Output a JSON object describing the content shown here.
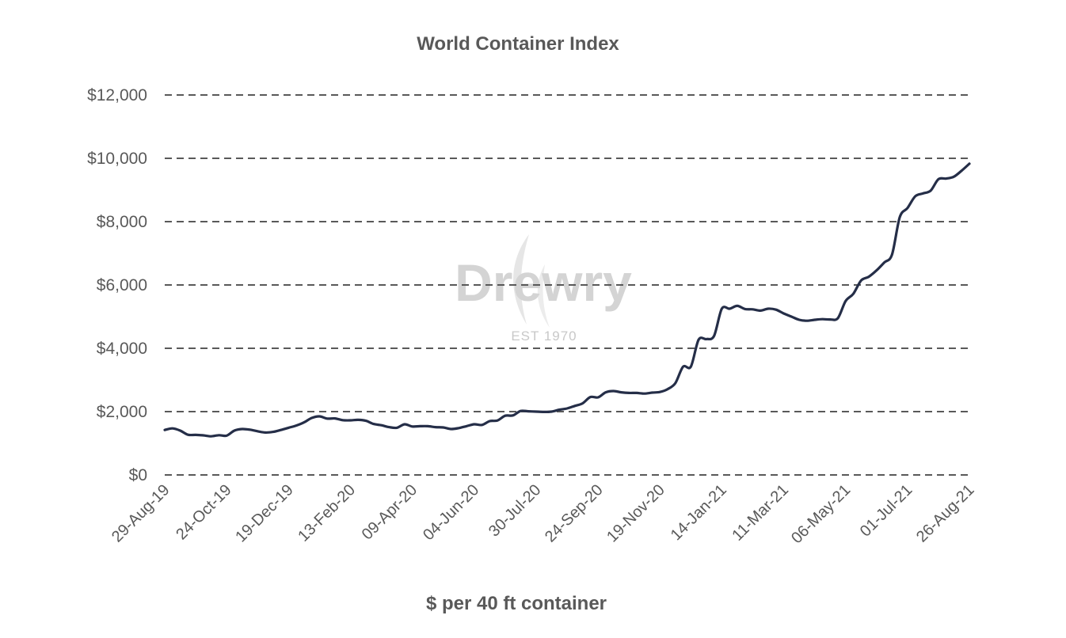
{
  "chart_data": {
    "type": "line",
    "title": "World Container Index",
    "xlabel": "$ per 40 ft container",
    "ylabel": "",
    "ylim": [
      0,
      12000
    ],
    "yticks": [
      0,
      2000,
      4000,
      6000,
      8000,
      10000,
      12000
    ],
    "ytick_labels": [
      "$0",
      "$2,000",
      "$4,000",
      "$6,000",
      "$8,000",
      "$10,000",
      "$12,000"
    ],
    "xlim": [
      "2019-08-29",
      "2021-08-26"
    ],
    "xticks": [
      "2019-08-29",
      "2019-10-24",
      "2019-12-19",
      "2020-02-13",
      "2020-04-09",
      "2020-06-04",
      "2020-07-30",
      "2020-09-24",
      "2020-11-19",
      "2021-01-14",
      "2021-03-11",
      "2021-05-06",
      "2021-07-01",
      "2021-08-26"
    ],
    "xtick_labels": [
      "29-Aug-19",
      "24-Oct-19",
      "19-Dec-19",
      "13-Feb-20",
      "09-Apr-20",
      "04-Jun-20",
      "30-Jul-20",
      "24-Sep-20",
      "19-Nov-20",
      "14-Jan-21",
      "11-Mar-21",
      "06-May-21",
      "01-Jul-21",
      "26-Aug-21"
    ],
    "grid": true,
    "legend": "none",
    "watermark": {
      "name": "Drewry",
      "established": "EST 1970"
    },
    "series": [
      {
        "color": "#252e48",
        "points": [
          [
            "2019-08-29",
            1420
          ],
          [
            "2019-09-05",
            1470
          ],
          [
            "2019-09-12",
            1400
          ],
          [
            "2019-09-19",
            1270
          ],
          [
            "2019-09-26",
            1265
          ],
          [
            "2019-10-03",
            1250
          ],
          [
            "2019-10-10",
            1220
          ],
          [
            "2019-10-17",
            1255
          ],
          [
            "2019-10-24",
            1240
          ],
          [
            "2019-10-31",
            1400
          ],
          [
            "2019-11-07",
            1450
          ],
          [
            "2019-11-14",
            1430
          ],
          [
            "2019-11-21",
            1380
          ],
          [
            "2019-11-28",
            1340
          ],
          [
            "2019-12-05",
            1360
          ],
          [
            "2019-12-12",
            1420
          ],
          [
            "2019-12-19",
            1490
          ],
          [
            "2019-12-26",
            1560
          ],
          [
            "2020-01-02",
            1660
          ],
          [
            "2020-01-09",
            1800
          ],
          [
            "2020-01-16",
            1850
          ],
          [
            "2020-01-23",
            1780
          ],
          [
            "2020-01-30",
            1785
          ],
          [
            "2020-02-06",
            1730
          ],
          [
            "2020-02-13",
            1725
          ],
          [
            "2020-02-20",
            1740
          ],
          [
            "2020-02-27",
            1710
          ],
          [
            "2020-03-05",
            1610
          ],
          [
            "2020-03-12",
            1570
          ],
          [
            "2020-03-19",
            1510
          ],
          [
            "2020-03-26",
            1490
          ],
          [
            "2020-04-02",
            1600
          ],
          [
            "2020-04-09",
            1530
          ],
          [
            "2020-04-16",
            1540
          ],
          [
            "2020-04-23",
            1540
          ],
          [
            "2020-04-30",
            1510
          ],
          [
            "2020-05-07",
            1500
          ],
          [
            "2020-05-14",
            1450
          ],
          [
            "2020-05-21",
            1480
          ],
          [
            "2020-05-28",
            1540
          ],
          [
            "2020-06-04",
            1600
          ],
          [
            "2020-06-11",
            1580
          ],
          [
            "2020-06-18",
            1700
          ],
          [
            "2020-06-25",
            1720
          ],
          [
            "2020-07-02",
            1870
          ],
          [
            "2020-07-09",
            1880
          ],
          [
            "2020-07-16",
            2020
          ],
          [
            "2020-07-23",
            2010
          ],
          [
            "2020-07-30",
            2000
          ],
          [
            "2020-08-06",
            1990
          ],
          [
            "2020-08-13",
            2000
          ],
          [
            "2020-08-20",
            2060
          ],
          [
            "2020-08-27",
            2100
          ],
          [
            "2020-09-03",
            2180
          ],
          [
            "2020-09-10",
            2260
          ],
          [
            "2020-09-17",
            2460
          ],
          [
            "2020-09-24",
            2450
          ],
          [
            "2020-10-01",
            2610
          ],
          [
            "2020-10-08",
            2650
          ],
          [
            "2020-10-15",
            2610
          ],
          [
            "2020-10-22",
            2590
          ],
          [
            "2020-10-29",
            2590
          ],
          [
            "2020-11-05",
            2570
          ],
          [
            "2020-11-12",
            2600
          ],
          [
            "2020-11-19",
            2620
          ],
          [
            "2020-11-26",
            2710
          ],
          [
            "2020-12-03",
            2900
          ],
          [
            "2020-12-10",
            3420
          ],
          [
            "2020-12-17",
            3420
          ],
          [
            "2020-12-24",
            4270
          ],
          [
            "2020-12-31",
            4290
          ],
          [
            "2021-01-07",
            4390
          ],
          [
            "2021-01-14",
            5250
          ],
          [
            "2021-01-21",
            5250
          ],
          [
            "2021-01-28",
            5340
          ],
          [
            "2021-02-04",
            5240
          ],
          [
            "2021-02-11",
            5230
          ],
          [
            "2021-02-18",
            5190
          ],
          [
            "2021-02-25",
            5250
          ],
          [
            "2021-03-04",
            5220
          ],
          [
            "2021-03-11",
            5100
          ],
          [
            "2021-03-18",
            5000
          ],
          [
            "2021-03-25",
            4900
          ],
          [
            "2021-04-01",
            4870
          ],
          [
            "2021-04-08",
            4900
          ],
          [
            "2021-04-15",
            4920
          ],
          [
            "2021-04-22",
            4910
          ],
          [
            "2021-04-29",
            4950
          ],
          [
            "2021-05-06",
            5490
          ],
          [
            "2021-05-13",
            5720
          ],
          [
            "2021-05-20",
            6140
          ],
          [
            "2021-05-27",
            6260
          ],
          [
            "2021-06-03",
            6460
          ],
          [
            "2021-06-10",
            6710
          ],
          [
            "2021-06-17",
            6960
          ],
          [
            "2021-06-24",
            8140
          ],
          [
            "2021-07-01",
            8430
          ],
          [
            "2021-07-08",
            8800
          ],
          [
            "2021-07-15",
            8890
          ],
          [
            "2021-07-22",
            8980
          ],
          [
            "2021-07-29",
            9340
          ],
          [
            "2021-08-05",
            9360
          ],
          [
            "2021-08-12",
            9420
          ],
          [
            "2021-08-19",
            9610
          ],
          [
            "2021-08-26",
            9830
          ]
        ]
      }
    ]
  }
}
